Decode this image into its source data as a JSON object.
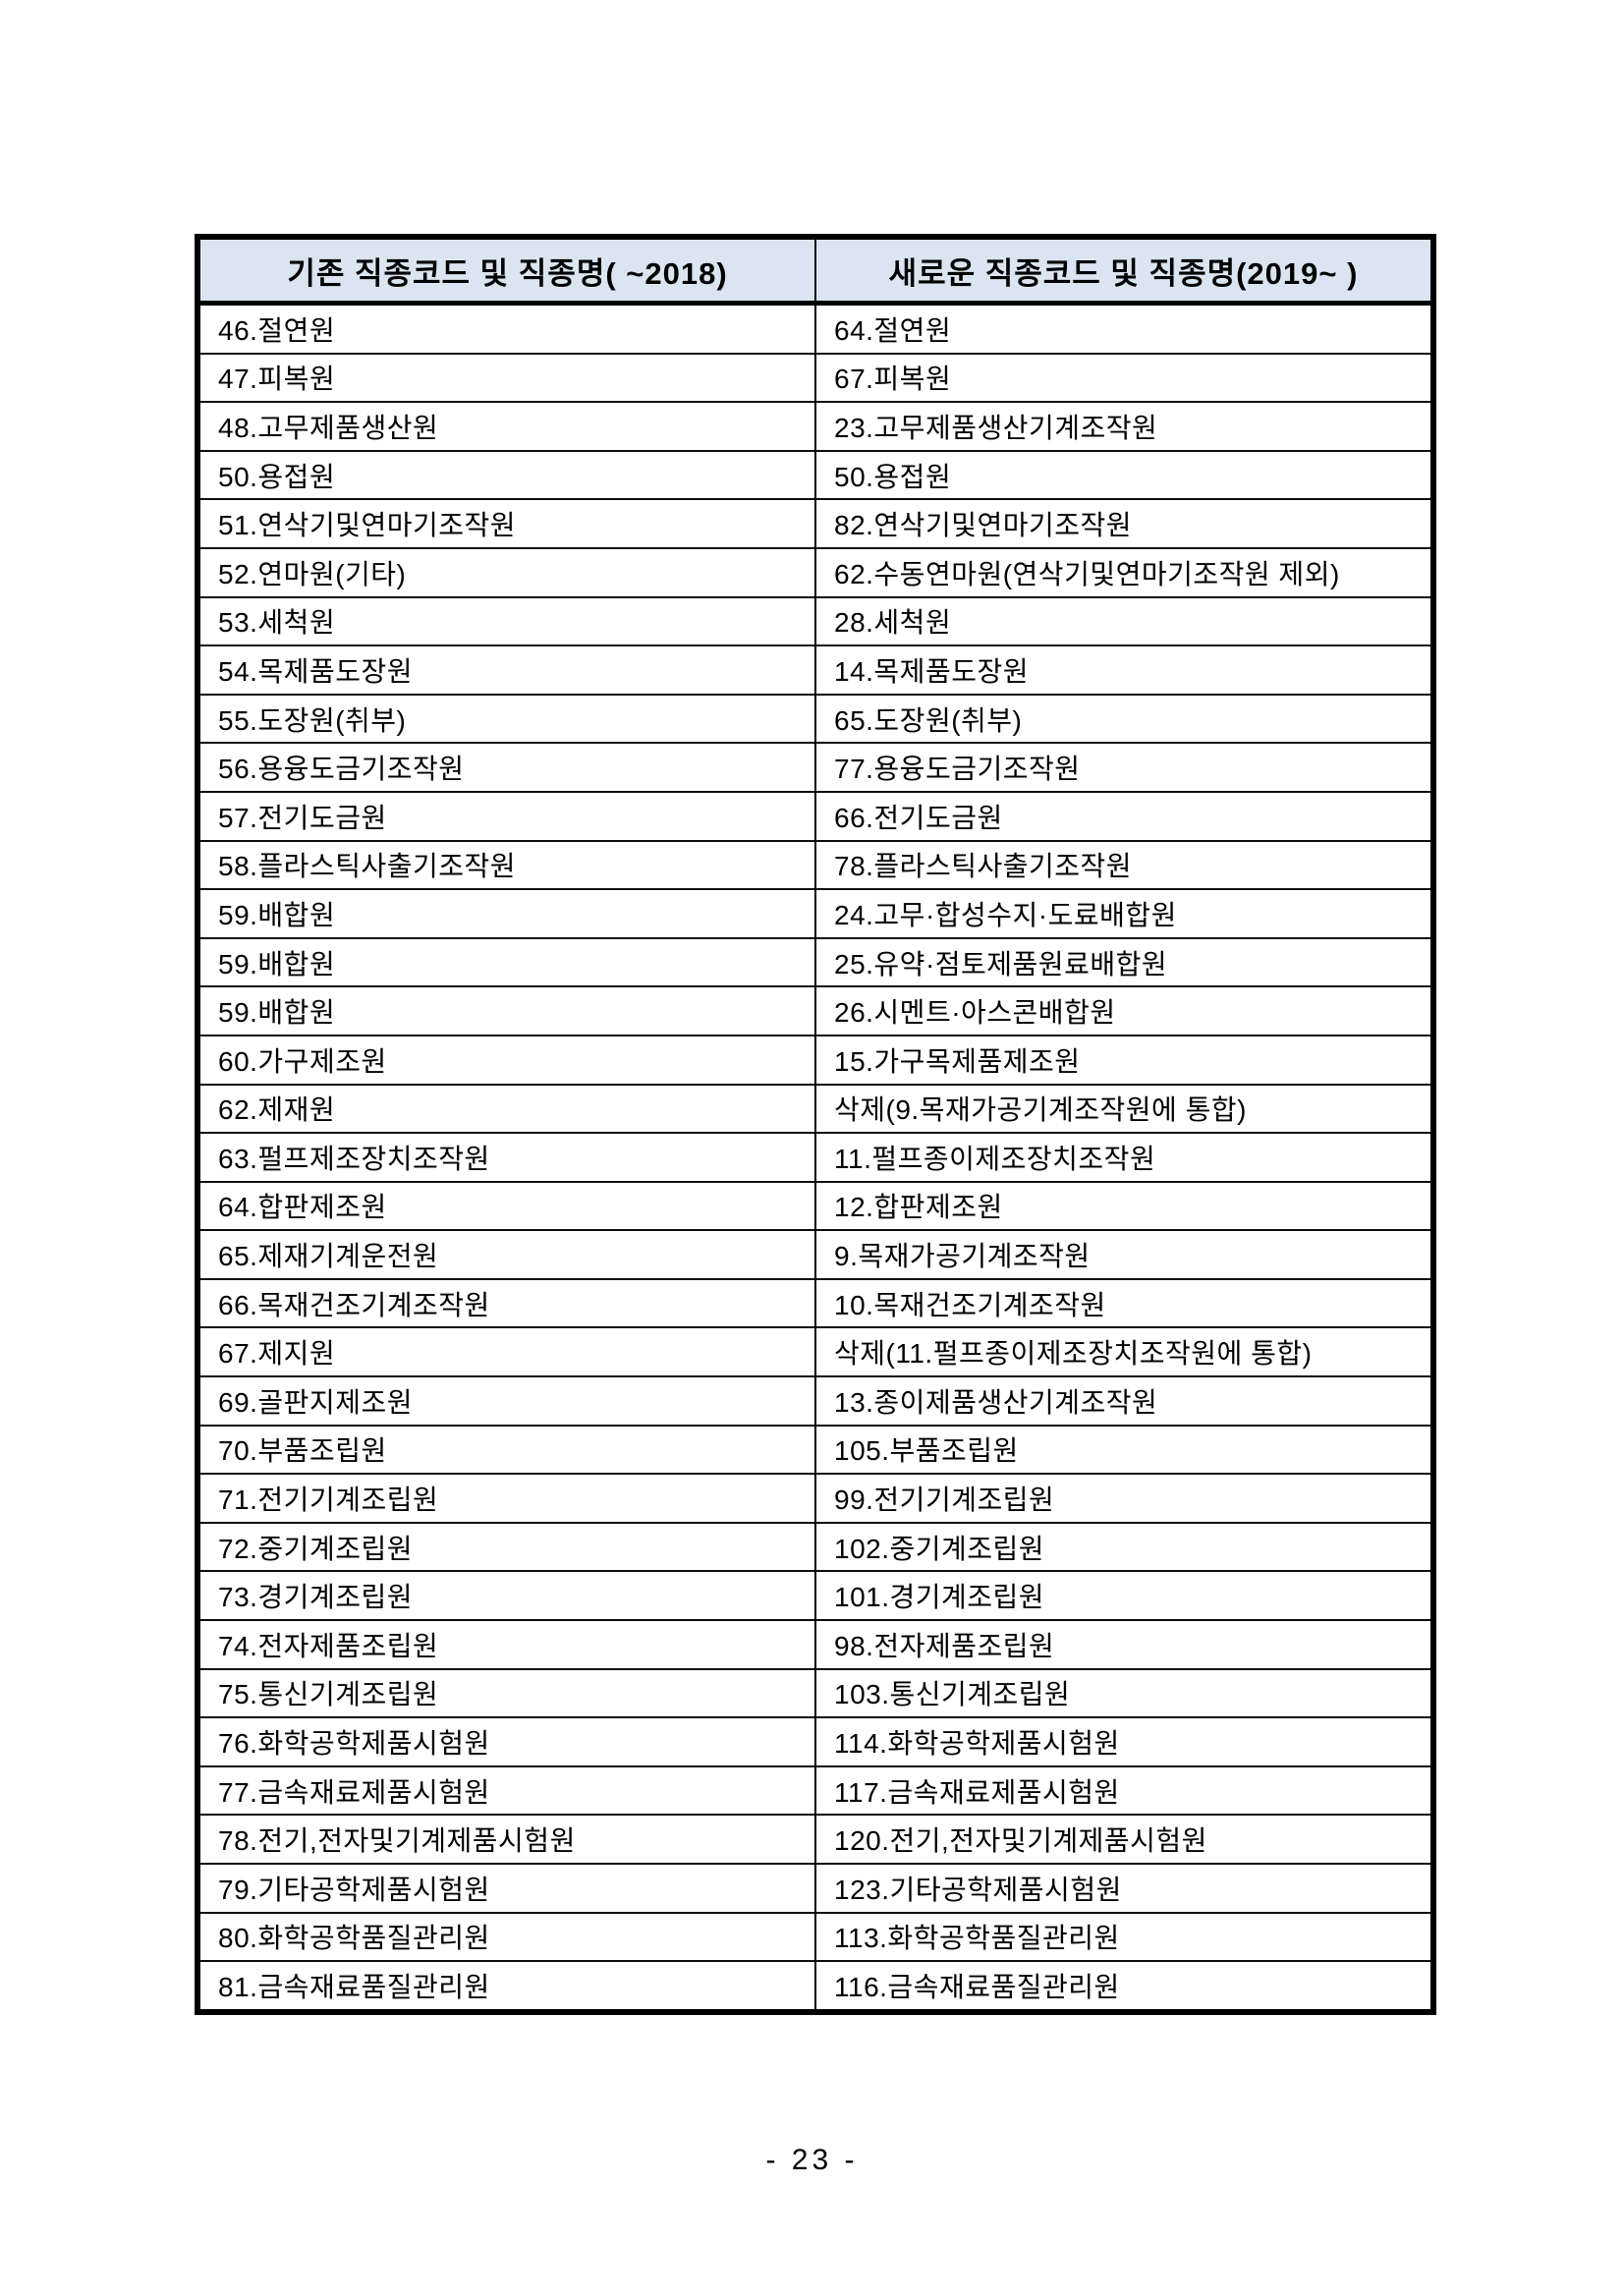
{
  "colors": {
    "header_bg": "#dbe5f1",
    "border": "#000000"
  },
  "page": {
    "number_label": "- 23 -"
  },
  "table": {
    "headers": {
      "old": "기존 직종코드 및 직종명( ~2018)",
      "new": "새로운 직종코드 및 직종명(2019~ )"
    },
    "rows": [
      {
        "old": "46.절연원",
        "new": "64.절연원"
      },
      {
        "old": "47.피복원",
        "new": "67.피복원"
      },
      {
        "old": "48.고무제품생산원",
        "new": "23.고무제품생산기계조작원"
      },
      {
        "old": "50.용접원",
        "new": "50.용접원"
      },
      {
        "old": "51.연삭기및연마기조작원",
        "new": "82.연삭기및연마기조작원"
      },
      {
        "old": "52.연마원(기타)",
        "new": "62.수동연마원(연삭기및연마기조작원 제외)"
      },
      {
        "old": "53.세척원",
        "new": "28.세척원"
      },
      {
        "old": "54.목제품도장원",
        "new": "14.목제품도장원"
      },
      {
        "old": "55.도장원(취부)",
        "new": "65.도장원(취부)"
      },
      {
        "old": "56.용융도금기조작원",
        "new": "77.용융도금기조작원"
      },
      {
        "old": "57.전기도금원",
        "new": "66.전기도금원"
      },
      {
        "old": "58.플라스틱사출기조작원",
        "new": "78.플라스틱사출기조작원"
      },
      {
        "old": "59.배합원",
        "new": "24.고무·합성수지·도료배합원"
      },
      {
        "old": "59.배합원",
        "new": "25.유약·점토제품원료배합원"
      },
      {
        "old": "59.배합원",
        "new": "26.시멘트·아스콘배합원"
      },
      {
        "old": "60.가구제조원",
        "new": "15.가구목제품제조원"
      },
      {
        "old": "62.제재원",
        "new": "삭제(9.목재가공기계조작원에 통합)"
      },
      {
        "old": "63.펄프제조장치조작원",
        "new": "11.펄프종이제조장치조작원"
      },
      {
        "old": "64.합판제조원",
        "new": "12.합판제조원"
      },
      {
        "old": "65.제재기계운전원",
        "new": "9.목재가공기계조작원"
      },
      {
        "old": "66.목재건조기계조작원",
        "new": "10.목재건조기계조작원"
      },
      {
        "old": "67.제지원",
        "new": "삭제(11.펄프종이제조장치조작원에 통합)"
      },
      {
        "old": "69.골판지제조원",
        "new": "13.종이제품생산기계조작원"
      },
      {
        "old": "70.부품조립원",
        "new": "105.부품조립원"
      },
      {
        "old": "71.전기기계조립원",
        "new": "99.전기기계조립원"
      },
      {
        "old": "72.중기계조립원",
        "new": "102.중기계조립원"
      },
      {
        "old": "73.경기계조립원",
        "new": "101.경기계조립원"
      },
      {
        "old": "74.전자제품조립원",
        "new": "98.전자제품조립원"
      },
      {
        "old": "75.통신기계조립원",
        "new": "103.통신기계조립원"
      },
      {
        "old": "76.화학공학제품시험원",
        "new": "114.화학공학제품시험원"
      },
      {
        "old": "77.금속재료제품시험원",
        "new": "117.금속재료제품시험원"
      },
      {
        "old": "78.전기,전자및기계제품시험원",
        "new": "120.전기,전자및기계제품시험원"
      },
      {
        "old": "79.기타공학제품시험원",
        "new": "123.기타공학제품시험원"
      },
      {
        "old": "80.화학공학품질관리원",
        "new": "113.화학공학품질관리원"
      },
      {
        "old": "81.금속재료품질관리원",
        "new": "116.금속재료품질관리원"
      }
    ]
  }
}
